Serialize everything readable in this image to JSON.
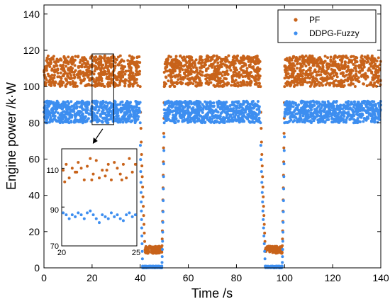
{
  "chart_data": {
    "type": "scatter",
    "xlabel": "Time /s",
    "ylabel": "Engine power /k·W",
    "xlim": [
      0,
      140
    ],
    "ylim": [
      0,
      145
    ],
    "x_ticks": [
      0,
      20,
      40,
      60,
      80,
      100,
      120,
      140
    ],
    "y_ticks": [
      0,
      20,
      40,
      60,
      80,
      100,
      120,
      140
    ],
    "grid": false,
    "legend_position": "top-right",
    "series": [
      {
        "name": "PF",
        "color": "#c8631a",
        "description_points": {
          "segments": [
            {
              "x_range": [
                0,
                40
              ],
              "y_range": [
                100,
                117
              ]
            },
            {
              "x_range": [
                40,
                42
              ],
              "y_range": [
                100,
                10
              ],
              "transition": "drop"
            },
            {
              "x_range": [
                42,
                49
              ],
              "y_range": [
                8,
                12
              ]
            },
            {
              "x_range": [
                49,
                50
              ],
              "y_range": [
                10,
                100
              ],
              "transition": "rise"
            },
            {
              "x_range": [
                50,
                90
              ],
              "y_range": [
                100,
                117
              ]
            },
            {
              "x_range": [
                90,
                92
              ],
              "y_range": [
                100,
                10
              ],
              "transition": "drop"
            },
            {
              "x_range": [
                92,
                99
              ],
              "y_range": [
                8,
                12
              ]
            },
            {
              "x_range": [
                99,
                100
              ],
              "y_range": [
                10,
                100
              ],
              "transition": "rise"
            },
            {
              "x_range": [
                100,
                140
              ],
              "y_range": [
                100,
                117
              ]
            }
          ]
        }
      },
      {
        "name": "DDPG-Fuzzy",
        "color": "#3d8ef0",
        "description_points": {
          "segments": [
            {
              "x_range": [
                0,
                40
              ],
              "y_range": [
                80,
                92
              ]
            },
            {
              "x_range": [
                40,
                41
              ],
              "y_range": [
                80,
                1
              ],
              "transition": "drop"
            },
            {
              "x_range": [
                41,
                49
              ],
              "y_range": [
                0,
                1
              ]
            },
            {
              "x_range": [
                49,
                50
              ],
              "y_range": [
                1,
                80
              ],
              "transition": "rise"
            },
            {
              "x_range": [
                50,
                90
              ],
              "y_range": [
                80,
                92
              ]
            },
            {
              "x_range": [
                90,
                92
              ],
              "y_range": [
                80,
                1
              ],
              "transition": "drop"
            },
            {
              "x_range": [
                92,
                99
              ],
              "y_range": [
                0,
                1
              ]
            },
            {
              "x_range": [
                99,
                100
              ],
              "y_range": [
                1,
                80
              ],
              "transition": "rise"
            },
            {
              "x_range": [
                100,
                140
              ],
              "y_range": [
                80,
                92
              ]
            }
          ]
        }
      }
    ],
    "inset": {
      "zoom_x_range": [
        20,
        29
      ],
      "zoom_y_range": [
        79,
        118
      ],
      "xlim": [
        20,
        25
      ],
      "ylim": [
        70,
        120
      ],
      "x_tick_labels": [
        "20",
        "25"
      ],
      "y_tick_labels": [
        "70",
        "90",
        "110"
      ],
      "pf_points": [
        {
          "x": 20.1,
          "y": 109
        },
        {
          "x": 20.3,
          "y": 112
        },
        {
          "x": 20.5,
          "y": 105
        },
        {
          "x": 20.7,
          "y": 110
        },
        {
          "x": 20.9,
          "y": 108
        },
        {
          "x": 21.1,
          "y": 113
        },
        {
          "x": 21.3,
          "y": 110
        },
        {
          "x": 21.5,
          "y": 104
        },
        {
          "x": 21.7,
          "y": 111
        },
        {
          "x": 21.9,
          "y": 115
        },
        {
          "x": 22.1,
          "y": 107
        },
        {
          "x": 22.3,
          "y": 114
        },
        {
          "x": 22.5,
          "y": 105
        },
        {
          "x": 22.7,
          "y": 109
        },
        {
          "x": 22.9,
          "y": 106
        },
        {
          "x": 23.1,
          "y": 112
        },
        {
          "x": 23.3,
          "y": 104
        },
        {
          "x": 23.5,
          "y": 113
        },
        {
          "x": 23.7,
          "y": 110
        },
        {
          "x": 23.9,
          "y": 107
        },
        {
          "x": 24.1,
          "y": 112
        },
        {
          "x": 24.3,
          "y": 105
        },
        {
          "x": 24.5,
          "y": 115
        },
        {
          "x": 24.7,
          "y": 108
        },
        {
          "x": 24.9,
          "y": 112
        },
        {
          "x": 20.2,
          "y": 103
        },
        {
          "x": 21.0,
          "y": 108
        },
        {
          "x": 22.0,
          "y": 104
        },
        {
          "x": 23.0,
          "y": 109
        },
        {
          "x": 24.0,
          "y": 104
        }
      ],
      "ddpg_points": [
        {
          "x": 20.1,
          "y": 87
        },
        {
          "x": 20.3,
          "y": 86
        },
        {
          "x": 20.5,
          "y": 84
        },
        {
          "x": 20.7,
          "y": 86
        },
        {
          "x": 20.9,
          "y": 85
        },
        {
          "x": 21.1,
          "y": 87
        },
        {
          "x": 21.3,
          "y": 86
        },
        {
          "x": 21.5,
          "y": 84
        },
        {
          "x": 21.7,
          "y": 87
        },
        {
          "x": 21.9,
          "y": 88
        },
        {
          "x": 22.1,
          "y": 86
        },
        {
          "x": 22.3,
          "y": 84
        },
        {
          "x": 22.5,
          "y": 82
        },
        {
          "x": 22.7,
          "y": 86
        },
        {
          "x": 22.9,
          "y": 85
        },
        {
          "x": 23.1,
          "y": 84
        },
        {
          "x": 23.3,
          "y": 87
        },
        {
          "x": 23.5,
          "y": 85
        },
        {
          "x": 23.7,
          "y": 86
        },
        {
          "x": 23.9,
          "y": 84
        },
        {
          "x": 24.1,
          "y": 83
        },
        {
          "x": 24.3,
          "y": 86
        },
        {
          "x": 24.5,
          "y": 87
        },
        {
          "x": 24.7,
          "y": 85
        },
        {
          "x": 24.9,
          "y": 86
        }
      ]
    }
  }
}
